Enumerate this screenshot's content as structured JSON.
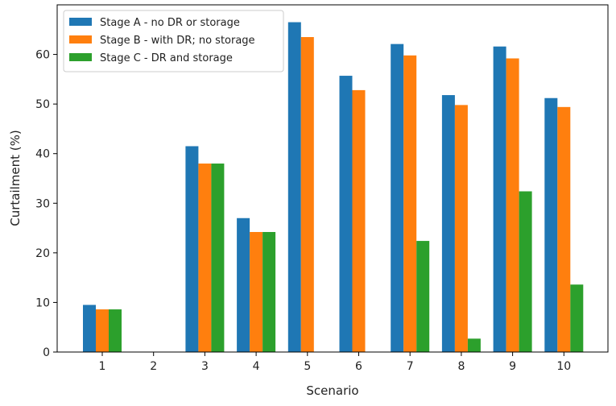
{
  "chart_data": {
    "type": "bar",
    "xlabel": "Scenario",
    "ylabel": "Curtailment (%)",
    "categories": [
      "1",
      "2",
      "3",
      "4",
      "5",
      "6",
      "7",
      "8",
      "9",
      "10"
    ],
    "ylim": [
      0,
      70
    ],
    "yticks": [
      0,
      10,
      20,
      30,
      40,
      50,
      60
    ],
    "grid": false,
    "legend_position": "top-left",
    "series": [
      {
        "name": "Stage A - no DR or storage",
        "color": "#1f77b4",
        "values": [
          9.5,
          0,
          41.5,
          27,
          66.5,
          55.7,
          62.1,
          51.8,
          61.6,
          51.2
        ]
      },
      {
        "name": "Stage B - with DR; no storage",
        "color": "#ff7f0e",
        "values": [
          8.6,
          0,
          38,
          24.2,
          63.5,
          52.8,
          59.8,
          49.8,
          59.2,
          49.4
        ]
      },
      {
        "name": "Stage C - DR and storage",
        "color": "#2ca02c",
        "values": [
          8.6,
          0,
          38,
          24.2,
          0,
          0,
          22.4,
          2.7,
          32.4,
          13.6
        ]
      }
    ]
  }
}
